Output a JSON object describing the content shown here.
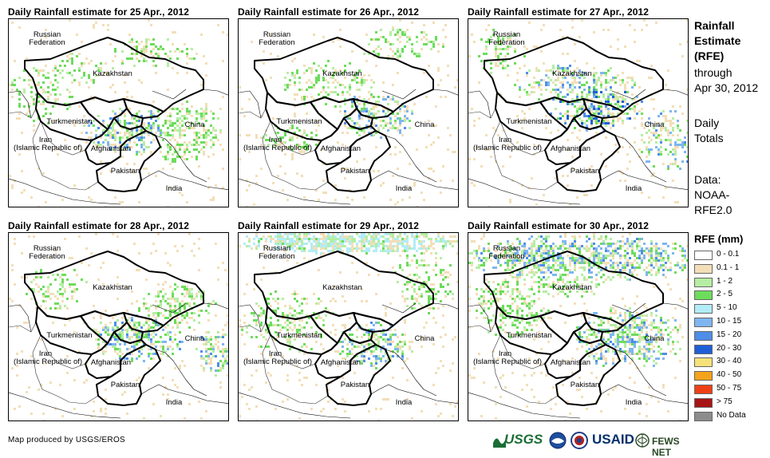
{
  "panels": [
    {
      "title": "Daily Rainfall estimate for 25 Apr., 2012"
    },
    {
      "title": "Daily Rainfall estimate for 26 Apr., 2012"
    },
    {
      "title": "Daily Rainfall estimate for 27 Apr., 2012"
    },
    {
      "title": "Daily Rainfall estimate for 28 Apr., 2012"
    },
    {
      "title": "Daily Rainfall estimate for 29 Apr., 2012"
    },
    {
      "title": "Daily Rainfall estimate for 30 Apr., 2012"
    }
  ],
  "places": {
    "russia_1": "Russian",
    "russia_2": "Federation",
    "kazakhstan": "Kazakhstan",
    "turkmenistan": "Turkmenistan",
    "china": "China",
    "iran_1": "Iran",
    "iran_2": "(Islamic Republic of)",
    "afghanistan": "Afghanistan",
    "pakistan": "Pakistan",
    "india": "India"
  },
  "sidebar": {
    "heading_1": "Rainfall",
    "heading_2": "Estimate",
    "heading_3": "(RFE)",
    "through_1": "through",
    "through_2": "Apr 30, 2012",
    "totals_1": "Daily",
    "totals_2": "Totals",
    "data_1": "Data:",
    "data_2": "NOAA-",
    "data_3": "RFE2.0"
  },
  "legend": {
    "title": "RFE (mm)",
    "items": [
      {
        "label": "0 - 0.1",
        "color": "#ffffff"
      },
      {
        "label": "0.1 - 1",
        "color": "#f2dfb8"
      },
      {
        "label": "1 - 2",
        "color": "#b5eea3"
      },
      {
        "label": "2 - 5",
        "color": "#6ddc5c"
      },
      {
        "label": "5 - 10",
        "color": "#b2ecf7"
      },
      {
        "label": "10 - 15",
        "color": "#7fb6f0"
      },
      {
        "label": "15 - 20",
        "color": "#4f8ee8"
      },
      {
        "label": "20 - 30",
        "color": "#1e5fd8"
      },
      {
        "label": "30 - 40",
        "color": "#f7e27a"
      },
      {
        "label": "40 - 50",
        "color": "#f4a21c"
      },
      {
        "label": "50 - 75",
        "color": "#ee4016"
      },
      {
        "label": "> 75",
        "color": "#a81414"
      },
      {
        "label": "No Data",
        "color": "#8c8c8c"
      }
    ]
  },
  "credit": "Map produced by USGS/EROS",
  "logos": {
    "usgs": "USGS",
    "usaid": "USAID",
    "fews": "FEWS NET"
  }
}
